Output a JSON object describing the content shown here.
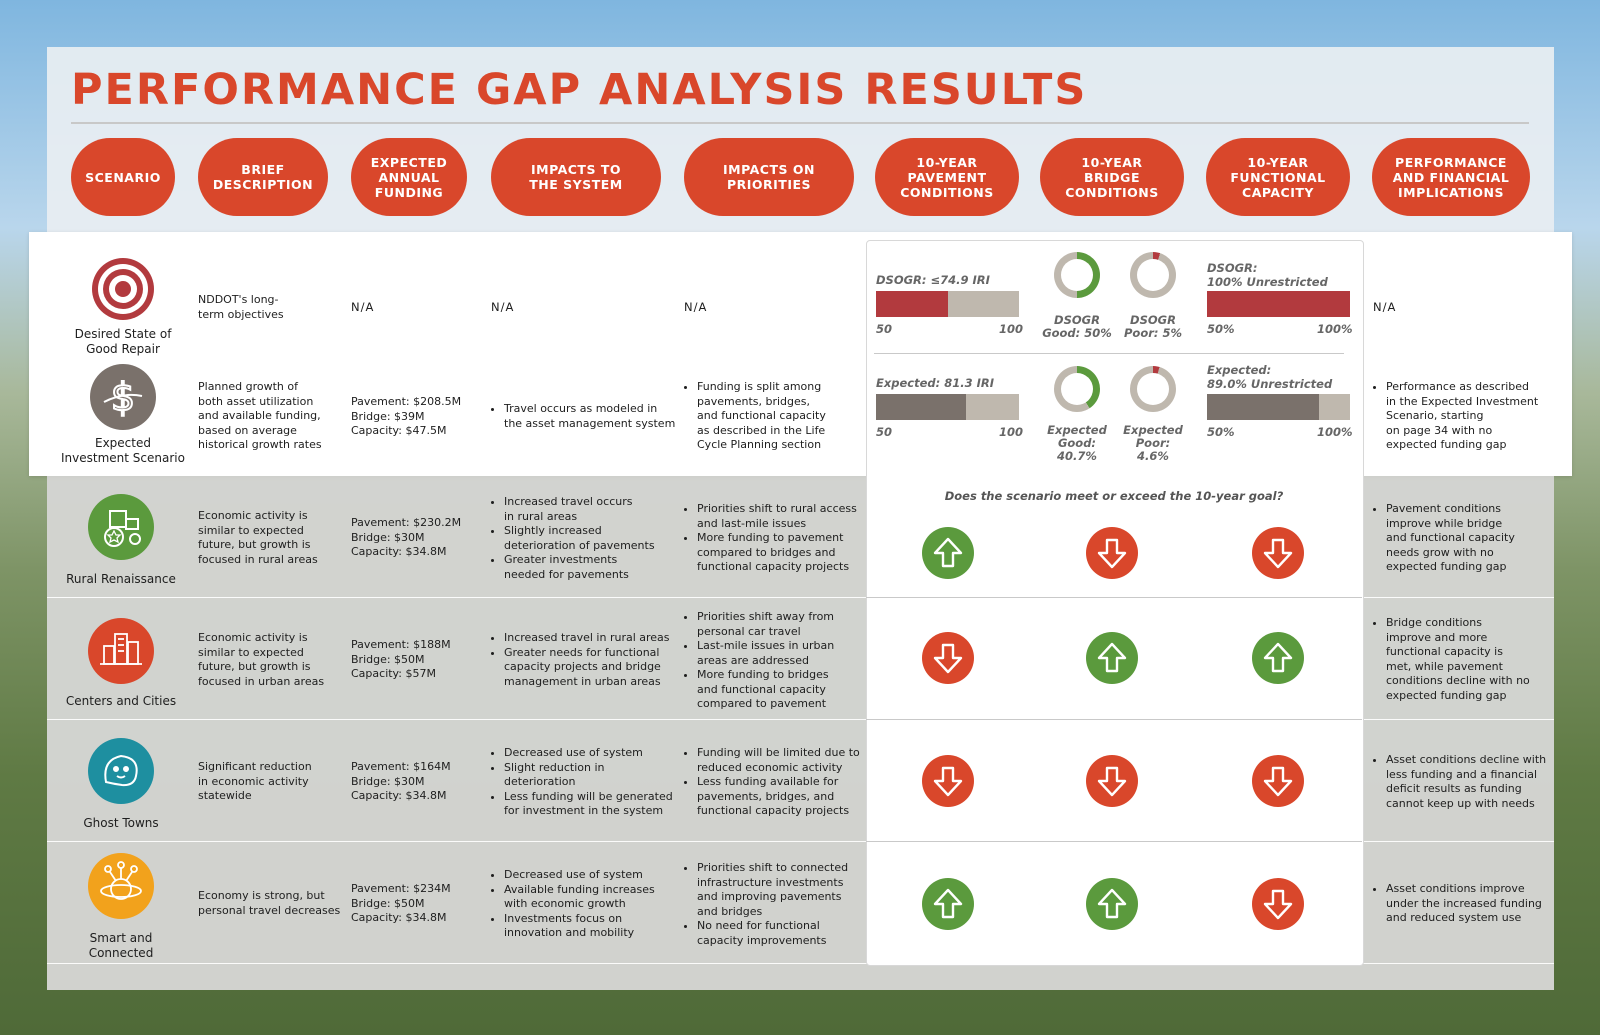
{
  "title": "PERFORMANCE GAP ANALYSIS RESULTS",
  "headers": [
    "SCENARIO",
    "BRIEF\nDESCRIPTION",
    "EXPECTED\nANNUAL\nFUNDING",
    "IMPACTS TO\nTHE SYSTEM",
    "IMPACTS ON\nPRIORITIES",
    "10-YEAR\nPAVEMENT\nCONDITIONS",
    "10-YEAR\nBRIDGE\nCONDITIONS",
    "10-YEAR\nFUNCTIONAL\nCAPACITY",
    "PERFORMANCE\nAND FINANCIAL\nIMPLICATIONS"
  ],
  "colors": {
    "accent": "#d9472b",
    "green": "#5b9a3d",
    "maroon": "#b23a3e",
    "taupe": "#7a716b",
    "bar_bg": "#bfb8ae"
  },
  "rows": [
    {
      "icon": "target-icon",
      "name": "Desired State of\nGood Repair",
      "description": "NDDOT's long-\nterm objectives",
      "funding": "N/A",
      "impacts_system": "N/A",
      "impacts_priorities": "N/A",
      "implications": "N/A"
    },
    {
      "icon": "dollar-icon",
      "name": "Expected\nInvestment Scenario",
      "description": "Planned growth of\nboth asset utilization\nand available funding,\nbased on average\nhistorical growth rates",
      "funding": "Pavement: $208.5M\nBridge: $39M\nCapacity: $47.5M",
      "impacts_system": [
        "Travel occurs as modeled in\nthe asset management system"
      ],
      "impacts_priorities": [
        "Funding is split among\npavements, bridges,\nand functional capacity\nas described in the Life\nCycle Planning section"
      ],
      "implications": [
        "Performance as described\nin the Expected Investment\nScenario, starting\non page 34 with no\nexpected funding gap"
      ]
    },
    {
      "icon": "tractor-icon",
      "name": "Rural Renaissance",
      "description": "Economic activity is\nsimilar to expected\nfuture, but growth is\nfocused in rural areas",
      "funding": "Pavement: $230.2M\nBridge: $30M\nCapacity: $34.8M",
      "impacts_system": [
        "Increased travel occurs\nin rural areas",
        "Slightly increased\ndeterioration of pavements",
        "Greater investments\nneeded for pavements"
      ],
      "impacts_priorities": [
        "Priorities shift to rural access\nand last-mile issues",
        "More funding to pavement\ncompared to bridges and\nfunctional capacity projects"
      ],
      "implications": [
        "Pavement conditions\nimprove while bridge\nand functional capacity\nneeds grow with no\nexpected funding gap"
      ],
      "goals": [
        "up",
        "down",
        "down"
      ]
    },
    {
      "icon": "city-icon",
      "name": "Centers and Cities",
      "description": "Economic activity is\nsimilar to expected\nfuture, but growth is\nfocused in urban areas",
      "funding": "Pavement: $188M\nBridge: $50M\nCapacity: $57M",
      "impacts_system": [
        "Increased travel in rural areas",
        "Greater needs for functional\ncapacity projects and bridge\nmanagement in urban areas"
      ],
      "impacts_priorities": [
        "Priorities shift away from\npersonal car travel",
        "Last-mile issues in urban\nareas are addressed",
        "More funding to bridges\nand functional capacity\ncompared to pavement"
      ],
      "implications": [
        "Bridge conditions\nimprove and more\nfunctional capacity is\nmet, while pavement\nconditions decline with no\nexpected funding gap"
      ],
      "goals": [
        "down",
        "up",
        "up"
      ]
    },
    {
      "icon": "ghost-icon",
      "name": "Ghost Towns",
      "description": "Significant reduction\nin economic activity\nstatewide",
      "funding": "Pavement: $164M\nBridge: $30M\nCapacity: $34.8M",
      "impacts_system": [
        "Decreased use of system",
        "Slight reduction in\ndeterioration",
        "Less funding will be generated\nfor investment in the system"
      ],
      "impacts_priorities": [
        "Funding will be limited due to\nreduced economic activity",
        "Less funding available for\npavements, bridges, and\nfunctional capacity projects"
      ],
      "implications": [
        "Asset conditions decline with\nless funding and a financial\ndeficit results as funding\ncannot keep up with needs"
      ],
      "goals": [
        "down",
        "down",
        "down"
      ]
    },
    {
      "icon": "network-icon",
      "name": "Smart and\nConnected",
      "description": "Economy is strong, but\npersonal travel decreases",
      "funding": "Pavement: $234M\nBridge: $50M\nCapacity: $34.8M",
      "impacts_system": [
        "Decreased use of system",
        "Available funding increases\nwith economic growth",
        "Investments focus on\ninnovation and mobility"
      ],
      "impacts_priorities": [
        "Priorities shift to connected\ninfrastructure investments\nand improving pavements\nand bridges",
        "No need for functional\ncapacity improvements"
      ],
      "implications": [
        "Asset conditions improve\nunder the increased funding\nand reduced system use"
      ],
      "goals": [
        "up",
        "up",
        "down"
      ]
    }
  ],
  "conditions": {
    "desired": {
      "pavement": {
        "label": "DSOGR: ≤74.9 IRI",
        "fill_fraction": 0.5,
        "min": "50",
        "max": "100"
      },
      "bridge_good": {
        "label": "DSOGR\nGood: 50%",
        "value_fraction": 0.5
      },
      "bridge_poor": {
        "label": "DSOGR\nPoor: 5%",
        "value_fraction": 0.05
      },
      "capacity": {
        "label": "DSOGR:\n100% Unrestricted",
        "fill_fraction": 1.0,
        "min": "50%",
        "max": "100%"
      }
    },
    "expected": {
      "pavement": {
        "label": "Expected: 81.3 IRI",
        "fill_fraction": 0.63,
        "min": "50",
        "max": "100"
      },
      "bridge_good": {
        "label": "Expected\nGood:\n40.7%",
        "value_fraction": 0.407
      },
      "bridge_poor": {
        "label": "Expected\nPoor:\n4.6%",
        "value_fraction": 0.046
      },
      "capacity": {
        "label": "Expected:\n89.0% Unrestricted",
        "fill_fraction": 0.78,
        "min": "50%",
        "max": "100%"
      }
    },
    "question": "Does the scenario meet or exceed the 10-year goal?"
  }
}
